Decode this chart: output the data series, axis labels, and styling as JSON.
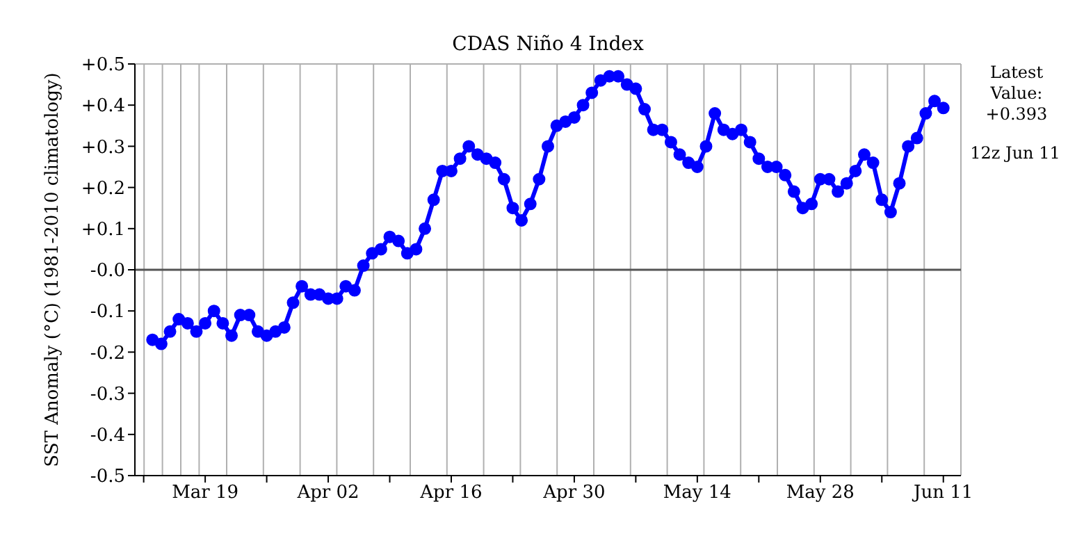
{
  "chart_data": {
    "type": "line",
    "title": "CDAS Niño 4 Index",
    "ylabel": "SST Anomaly (°C) (1981-2010 climatology)",
    "annotations": [
      "Latest\nValue:\n+0.393",
      "12z Jun 11"
    ],
    "x": [
      "--03-13",
      "--03-14",
      "--03-15",
      "--03-16",
      "--03-17",
      "--03-18",
      "--03-19",
      "--03-20",
      "--03-21",
      "--03-22",
      "--03-23",
      "--03-24",
      "--03-25",
      "--03-26",
      "--03-27",
      "--03-28",
      "--03-29",
      "--03-30",
      "--03-31",
      "--04-01",
      "--04-02",
      "--04-03",
      "--04-04",
      "--04-05",
      "--04-06",
      "--04-07",
      "--04-08",
      "--04-09",
      "--04-10",
      "--04-11",
      "--04-12",
      "--04-13",
      "--04-14",
      "--04-15",
      "--04-16",
      "--04-17",
      "--04-18",
      "--04-19",
      "--04-20",
      "--04-21",
      "--04-22",
      "--04-23",
      "--04-24",
      "--04-25",
      "--04-26",
      "--04-27",
      "--04-28",
      "--04-29",
      "--04-30",
      "--05-01",
      "--05-02",
      "--05-03",
      "--05-04",
      "--05-05",
      "--05-06",
      "--05-07",
      "--05-08",
      "--05-09",
      "--05-10",
      "--05-11",
      "--05-12",
      "--05-13",
      "--05-14",
      "--05-15",
      "--05-16",
      "--05-17",
      "--05-18",
      "--05-19",
      "--05-20",
      "--05-21",
      "--05-22",
      "--05-23",
      "--05-24",
      "--05-25",
      "--05-26",
      "--05-27",
      "--05-28",
      "--05-29",
      "--05-30",
      "--05-31",
      "--06-01",
      "--06-02",
      "--06-03",
      "--06-04",
      "--06-05",
      "--06-06",
      "--06-07",
      "--06-08",
      "--06-09",
      "--06-10",
      "--06-11"
    ],
    "series": [
      {
        "color": "#0000ff",
        "values": [
          -0.17,
          -0.18,
          -0.15,
          -0.12,
          -0.13,
          -0.15,
          -0.13,
          -0.1,
          -0.13,
          -0.16,
          -0.11,
          -0.11,
          -0.15,
          -0.16,
          -0.15,
          -0.14,
          -0.08,
          -0.04,
          -0.06,
          -0.06,
          -0.07,
          -0.07,
          -0.04,
          -0.05,
          0.01,
          0.04,
          0.05,
          0.08,
          0.07,
          0.04,
          0.05,
          0.1,
          0.17,
          0.24,
          0.24,
          0.27,
          0.3,
          0.28,
          0.27,
          0.26,
          0.22,
          0.15,
          0.12,
          0.16,
          0.22,
          0.3,
          0.35,
          0.36,
          0.37,
          0.4,
          0.43,
          0.46,
          0.47,
          0.47,
          0.45,
          0.44,
          0.39,
          0.34,
          0.34,
          0.31,
          0.28,
          0.26,
          0.25,
          0.3,
          0.38,
          0.34,
          0.33,
          0.34,
          0.31,
          0.27,
          0.25,
          0.25,
          0.23,
          0.19,
          0.15,
          0.16,
          0.22,
          0.22,
          0.19,
          0.21,
          0.24,
          0.28,
          0.26,
          0.17,
          0.14,
          0.21,
          0.3,
          0.32,
          0.38,
          0.41,
          0.393
        ]
      }
    ],
    "xlim": [
      "--03-11",
      "--06-13"
    ],
    "xticks": [
      {
        "value": "--03-12",
        "label": null
      },
      {
        "value": "--03-19",
        "label": "Mar 19"
      },
      {
        "value": "--03-26",
        "label": null
      },
      {
        "value": "--04-02",
        "label": "Apr 02"
      },
      {
        "value": "--04-09",
        "label": null
      },
      {
        "value": "--04-16",
        "label": "Apr 16"
      },
      {
        "value": "--04-23",
        "label": null
      },
      {
        "value": "--04-30",
        "label": "Apr 30"
      },
      {
        "value": "--05-07",
        "label": null
      },
      {
        "value": "--05-14",
        "label": "May 14"
      },
      {
        "value": "--05-21",
        "label": null
      },
      {
        "value": "--05-28",
        "label": "May 28"
      },
      {
        "value": "--06-04",
        "label": null
      },
      {
        "value": "--06-11",
        "label": "Jun 11"
      }
    ],
    "ylim": [
      -0.5,
      0.5
    ],
    "yticks": [
      {
        "value": -0.5,
        "label": "-0.5"
      },
      {
        "value": -0.4,
        "label": "-0.4"
      },
      {
        "value": -0.3,
        "label": "-0.3"
      },
      {
        "value": -0.2,
        "label": "-0.2"
      },
      {
        "value": -0.1,
        "label": "-0.1"
      },
      {
        "value": 0,
        "label": "-0.0"
      },
      {
        "value": 0.1,
        "label": "+0.1"
      },
      {
        "value": 0.2,
        "label": "+0.2"
      },
      {
        "value": 0.3,
        "label": "+0.3"
      },
      {
        "value": 0.4,
        "label": "+0.4"
      },
      {
        "value": 0.5,
        "label": "+0.5"
      }
    ],
    "ref_lines": [
      {
        "axis": "y",
        "value": 0,
        "color": "#555555"
      }
    ],
    "grid": true,
    "marker": "circle",
    "line_style": "solid"
  }
}
